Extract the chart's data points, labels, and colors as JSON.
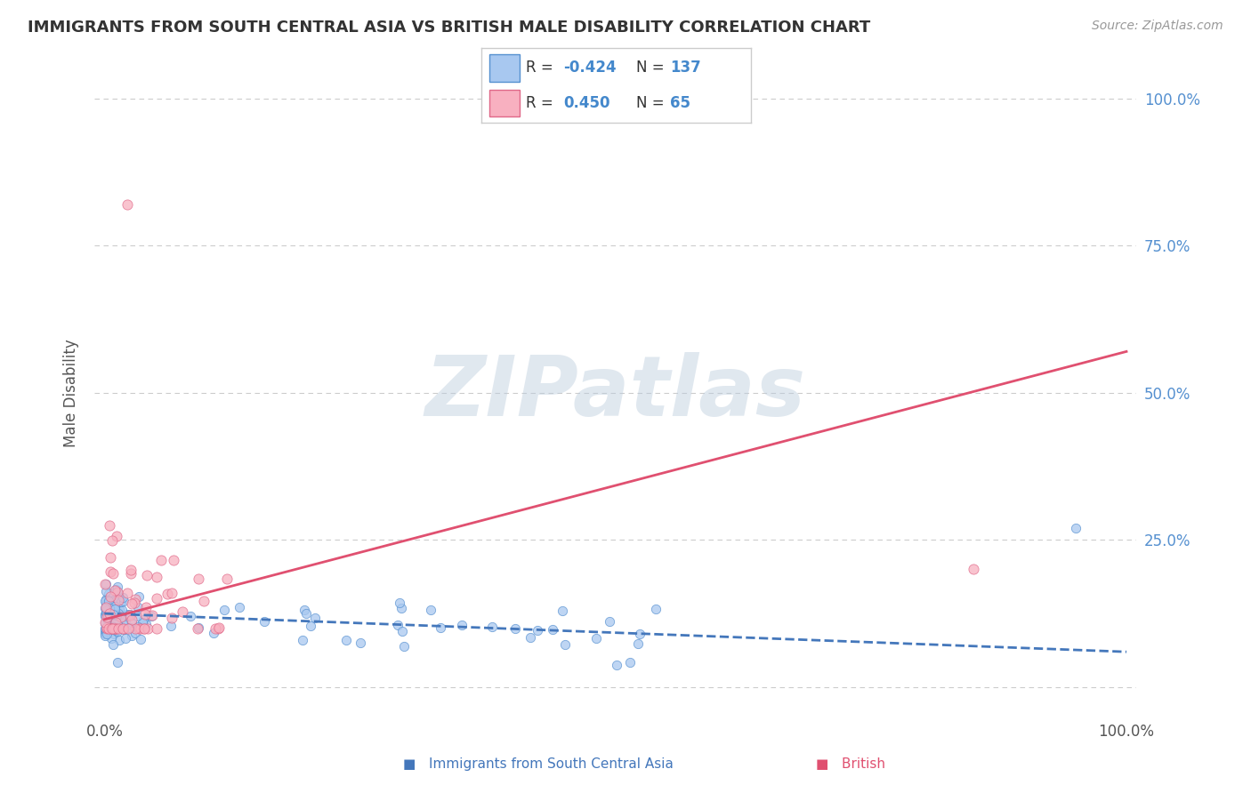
{
  "title": "IMMIGRANTS FROM SOUTH CENTRAL ASIA VS BRITISH MALE DISABILITY CORRELATION CHART",
  "source": "Source: ZipAtlas.com",
  "ylabel": "Male Disability",
  "watermark_text": "ZIPatlas",
  "legend_blue_R": "-0.424",
  "legend_blue_N": "137",
  "legend_pink_R": "0.450",
  "legend_pink_N": "65",
  "blue_fill": "#A8C8F0",
  "blue_edge": "#5590D0",
  "pink_fill": "#F8B0C0",
  "pink_edge": "#E06888",
  "blue_line_color": "#4477BB",
  "pink_line_color": "#E05070",
  "bg_color": "#FFFFFF",
  "grid_color": "#CCCCCC",
  "tick_color_y": "#5590D0",
  "tick_color_x": "#555555",
  "title_color": "#333333",
  "source_color": "#999999",
  "ylabel_color": "#555555",
  "blue_intercept": 0.125,
  "blue_slope": -0.065,
  "pink_intercept": 0.115,
  "pink_slope": 0.455,
  "xlim_min": -0.01,
  "xlim_max": 1.01,
  "ylim_min": -0.05,
  "ylim_max": 1.05
}
